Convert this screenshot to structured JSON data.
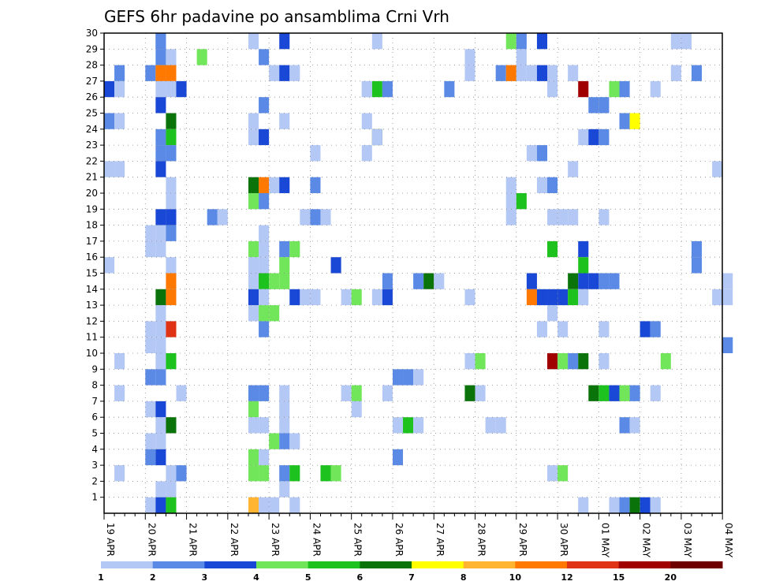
{
  "chart_data": {
    "type": "heatmap",
    "title": "GEFS 6hr padavine po ansamblima Crni Vrh",
    "x_start": "2024-04-19T00",
    "x_step_hours": 6,
    "x_steps": 61,
    "x_ticks": [
      "19 APR",
      "20 APR",
      "21 APR",
      "22 APR",
      "23 APR",
      "24 APR",
      "25 APR",
      "26 APR",
      "27 APR",
      "28 APR",
      "29 APR",
      "30 APR",
      "01 MAY",
      "02 MAY",
      "03 MAY",
      "04 MAY"
    ],
    "y_labels": [
      "1",
      "2",
      "3",
      "4",
      "5",
      "6",
      "7",
      "8",
      "9",
      "10",
      "11",
      "12",
      "13",
      "14",
      "15",
      "16",
      "17",
      "18",
      "19",
      "20",
      "21",
      "22",
      "23",
      "24",
      "25",
      "26",
      "27",
      "28",
      "29",
      "30"
    ],
    "ylim": [
      0,
      30
    ],
    "grid": true,
    "colorbar": {
      "labels": [
        "1",
        "2",
        "3",
        "4",
        "5",
        "6",
        "7",
        "8",
        "10",
        "12",
        "15",
        "20"
      ],
      "colors": [
        "#b4c8f5",
        "#5a8ae6",
        "#1a48d6",
        "#72e65a",
        "#1ec21e",
        "#0a730a",
        "#ffff00",
        "#ffb432",
        "#ff7800",
        "#e03214",
        "#a00000",
        "#6e0000"
      ]
    },
    "cells": [
      [
        0,
        26,
        3
      ],
      [
        0,
        24,
        2
      ],
      [
        1,
        27,
        2
      ],
      [
        1,
        26,
        1
      ],
      [
        1,
        24,
        1
      ],
      [
        1,
        21,
        1
      ],
      [
        1,
        9,
        1
      ],
      [
        1,
        7,
        1
      ],
      [
        1,
        2,
        1
      ],
      [
        0,
        21,
        1
      ],
      [
        0,
        15,
        1
      ],
      [
        4,
        27,
        2
      ],
      [
        4,
        17,
        1
      ],
      [
        4,
        16,
        1
      ],
      [
        4,
        11,
        1
      ],
      [
        4,
        10,
        1
      ],
      [
        4,
        8,
        2
      ],
      [
        4,
        6,
        1
      ],
      [
        4,
        4,
        1
      ],
      [
        4,
        3,
        2
      ],
      [
        4,
        0,
        1
      ],
      [
        5,
        30,
        2
      ],
      [
        5,
        29,
        2
      ],
      [
        5,
        28,
        2
      ],
      [
        5,
        27,
        9
      ],
      [
        5,
        26,
        1
      ],
      [
        5,
        25,
        3
      ],
      [
        5,
        23,
        2
      ],
      [
        5,
        22,
        2
      ],
      [
        5,
        21,
        3
      ],
      [
        5,
        18,
        3
      ],
      [
        5,
        17,
        1
      ],
      [
        5,
        16,
        1
      ],
      [
        5,
        13,
        6
      ],
      [
        5,
        12,
        1
      ],
      [
        5,
        11,
        1
      ],
      [
        5,
        10,
        1
      ],
      [
        5,
        9,
        1
      ],
      [
        5,
        8,
        2
      ],
      [
        5,
        6,
        3
      ],
      [
        5,
        5,
        1
      ],
      [
        5,
        4,
        1
      ],
      [
        5,
        3,
        3
      ],
      [
        5,
        1,
        1
      ],
      [
        5,
        0,
        3
      ],
      [
        6,
        28,
        1
      ],
      [
        6,
        27,
        9
      ],
      [
        6,
        26,
        13
      ],
      [
        6,
        24,
        6
      ],
      [
        6,
        23,
        5
      ],
      [
        6,
        22,
        2
      ],
      [
        6,
        20,
        1
      ],
      [
        6,
        19,
        1
      ],
      [
        6,
        18,
        3
      ],
      [
        6,
        17,
        2
      ],
      [
        6,
        15,
        13
      ],
      [
        6,
        14,
        9
      ],
      [
        6,
        13,
        9
      ],
      [
        6,
        11,
        10
      ],
      [
        6,
        9,
        5
      ],
      [
        6,
        5,
        6
      ],
      [
        6,
        2,
        1
      ],
      [
        6,
        1,
        1
      ],
      [
        6,
        0,
        5
      ],
      [
        7,
        26,
        3
      ],
      [
        7,
        7,
        1
      ],
      [
        7,
        2,
        2
      ],
      [
        9,
        28,
        4
      ],
      [
        10,
        18,
        2
      ],
      [
        11,
        18,
        1
      ],
      [
        14,
        29,
        1
      ],
      [
        14,
        23,
        1
      ],
      [
        14,
        24,
        1
      ],
      [
        14,
        20,
        6
      ],
      [
        14,
        19,
        4
      ],
      [
        14,
        16,
        4
      ],
      [
        14,
        15,
        1
      ],
      [
        14,
        14,
        1
      ],
      [
        14,
        13,
        3
      ],
      [
        14,
        12,
        1
      ],
      [
        14,
        7,
        2
      ],
      [
        14,
        6,
        4
      ],
      [
        14,
        5,
        1
      ],
      [
        14,
        3,
        4
      ],
      [
        14,
        2,
        4
      ],
      [
        14,
        0,
        8
      ],
      [
        15,
        28,
        2
      ],
      [
        15,
        25,
        2
      ],
      [
        15,
        23,
        3
      ],
      [
        15,
        20,
        9
      ],
      [
        15,
        19,
        2
      ],
      [
        15,
        17,
        1
      ],
      [
        15,
        16,
        1
      ],
      [
        15,
        15,
        1
      ],
      [
        15,
        14,
        5
      ],
      [
        15,
        13,
        1
      ],
      [
        15,
        12,
        4
      ],
      [
        15,
        11,
        2
      ],
      [
        15,
        7,
        2
      ],
      [
        15,
        5,
        1
      ],
      [
        15,
        3,
        1
      ],
      [
        15,
        2,
        4
      ],
      [
        15,
        0,
        1
      ],
      [
        16,
        27,
        1
      ],
      [
        16,
        20,
        1
      ],
      [
        16,
        14,
        4
      ],
      [
        16,
        12,
        4
      ],
      [
        16,
        4,
        4
      ],
      [
        16,
        0,
        1
      ],
      [
        17,
        29,
        3
      ],
      [
        17,
        27,
        3
      ],
      [
        17,
        24,
        1
      ],
      [
        17,
        20,
        3
      ],
      [
        17,
        16,
        2
      ],
      [
        17,
        15,
        4
      ],
      [
        17,
        14,
        4
      ],
      [
        17,
        7,
        1
      ],
      [
        17,
        6,
        1
      ],
      [
        17,
        5,
        1
      ],
      [
        17,
        4,
        2
      ],
      [
        17,
        2,
        2
      ],
      [
        17,
        1,
        1
      ],
      [
        18,
        27,
        1
      ],
      [
        18,
        16,
        4
      ],
      [
        18,
        13,
        3
      ],
      [
        18,
        4,
        1
      ],
      [
        18,
        2,
        5
      ],
      [
        18,
        0,
        1
      ],
      [
        19,
        18,
        1
      ],
      [
        19,
        13,
        1
      ],
      [
        20,
        22,
        1
      ],
      [
        20,
        20,
        2
      ],
      [
        20,
        18,
        2
      ],
      [
        20,
        13,
        1
      ],
      [
        21,
        18,
        1
      ],
      [
        21,
        2,
        5
      ],
      [
        22,
        15,
        3
      ],
      [
        22,
        2,
        4
      ],
      [
        23,
        13,
        1
      ],
      [
        23,
        7,
        1
      ],
      [
        24,
        13,
        4
      ],
      [
        24,
        7,
        4
      ],
      [
        24,
        6,
        1
      ],
      [
        25,
        26,
        1
      ],
      [
        25,
        24,
        1
      ],
      [
        25,
        22,
        1
      ],
      [
        26,
        23,
        6
      ],
      [
        26,
        26,
        5
      ],
      [
        26,
        23,
        1
      ],
      [
        25,
        26,
        1
      ],
      [
        26,
        13,
        1
      ],
      [
        27,
        26,
        2
      ],
      [
        27,
        13,
        3
      ],
      [
        27,
        7,
        1
      ],
      [
        26,
        31,
        1
      ],
      [
        27,
        14,
        2
      ],
      [
        28,
        8,
        2
      ],
      [
        28,
        5,
        1
      ],
      [
        28,
        3,
        2
      ],
      [
        29,
        8,
        2
      ],
      [
        29,
        5,
        5
      ],
      [
        30,
        8,
        1
      ],
      [
        30,
        5,
        1
      ],
      [
        30,
        14,
        2
      ],
      [
        31,
        14,
        6
      ],
      [
        32,
        14,
        1
      ],
      [
        33,
        26,
        2
      ],
      [
        35,
        27,
        1
      ],
      [
        35,
        28,
        1
      ],
      [
        35,
        13,
        1
      ],
      [
        35,
        9,
        1
      ],
      [
        36,
        9,
        4
      ],
      [
        35,
        7,
        6
      ],
      [
        36,
        7,
        1
      ],
      [
        37,
        5,
        1
      ],
      [
        38,
        5,
        1
      ],
      [
        38,
        27,
        2
      ],
      [
        39,
        27,
        9
      ],
      [
        39,
        29,
        4
      ],
      [
        39,
        20,
        1
      ],
      [
        39,
        19,
        1
      ],
      [
        39,
        18,
        1
      ],
      [
        40,
        29,
        2
      ],
      [
        40,
        28,
        1
      ],
      [
        40,
        27,
        1
      ],
      [
        40,
        19,
        5
      ],
      [
        41,
        14,
        3
      ],
      [
        41,
        13,
        9
      ],
      [
        41,
        27,
        1
      ],
      [
        41,
        22,
        1
      ],
      [
        42,
        29,
        3
      ],
      [
        42,
        27,
        3
      ],
      [
        42,
        22,
        2
      ],
      [
        42,
        20,
        1
      ],
      [
        42,
        13,
        3
      ],
      [
        42,
        11,
        1
      ],
      [
        43,
        27,
        1
      ],
      [
        43,
        26,
        1
      ],
      [
        43,
        20,
        2
      ],
      [
        43,
        18,
        1
      ],
      [
        43,
        16,
        5
      ],
      [
        43,
        13,
        3
      ],
      [
        43,
        12,
        1
      ],
      [
        43,
        9,
        11
      ],
      [
        43,
        2,
        1
      ],
      [
        44,
        18,
        1
      ],
      [
        44,
        13,
        3
      ],
      [
        44,
        11,
        1
      ],
      [
        44,
        9,
        4
      ],
      [
        44,
        2,
        4
      ],
      [
        45,
        18,
        1
      ],
      [
        45,
        14,
        6
      ],
      [
        45,
        13,
        5
      ],
      [
        45,
        21,
        1
      ],
      [
        45,
        27,
        1
      ],
      [
        45,
        9,
        2
      ],
      [
        46,
        23,
        1
      ],
      [
        46,
        16,
        3
      ],
      [
        46,
        15,
        5
      ],
      [
        46,
        14,
        3
      ],
      [
        46,
        13,
        1
      ],
      [
        46,
        26,
        11
      ],
      [
        46,
        9,
        6
      ],
      [
        46,
        0,
        1
      ],
      [
        47,
        25,
        2
      ],
      [
        47,
        23,
        3
      ],
      [
        47,
        14,
        3
      ],
      [
        47,
        7,
        6
      ],
      [
        48,
        25,
        2
      ],
      [
        48,
        23,
        2
      ],
      [
        48,
        18,
        1
      ],
      [
        48,
        14,
        2
      ],
      [
        48,
        11,
        1
      ],
      [
        48,
        9,
        1
      ],
      [
        48,
        7,
        5
      ],
      [
        49,
        26,
        4
      ],
      [
        49,
        14,
        2
      ],
      [
        49,
        7,
        3
      ],
      [
        49,
        0,
        1
      ],
      [
        50,
        26,
        2
      ],
      [
        50,
        24,
        2
      ],
      [
        50,
        7,
        4
      ],
      [
        50,
        5,
        2
      ],
      [
        50,
        0,
        2
      ],
      [
        51,
        24,
        7
      ],
      [
        51,
        7,
        2
      ],
      [
        51,
        5,
        1
      ],
      [
        51,
        0,
        6
      ],
      [
        52,
        11,
        3
      ],
      [
        52,
        0,
        3
      ],
      [
        53,
        26,
        1
      ],
      [
        53,
        11,
        2
      ],
      [
        53,
        7,
        1
      ],
      [
        53,
        0,
        1
      ],
      [
        54,
        9,
        4
      ],
      [
        55,
        27,
        1
      ],
      [
        56,
        30,
        1
      ],
      [
        55,
        30,
        1
      ],
      [
        57,
        27,
        2
      ],
      [
        57,
        16,
        2
      ],
      [
        57,
        15,
        2
      ],
      [
        59,
        21,
        1
      ],
      [
        59,
        13,
        1
      ],
      [
        60,
        14,
        1
      ],
      [
        60,
        13,
        1
      ],
      [
        60,
        10,
        2
      ]
    ]
  }
}
